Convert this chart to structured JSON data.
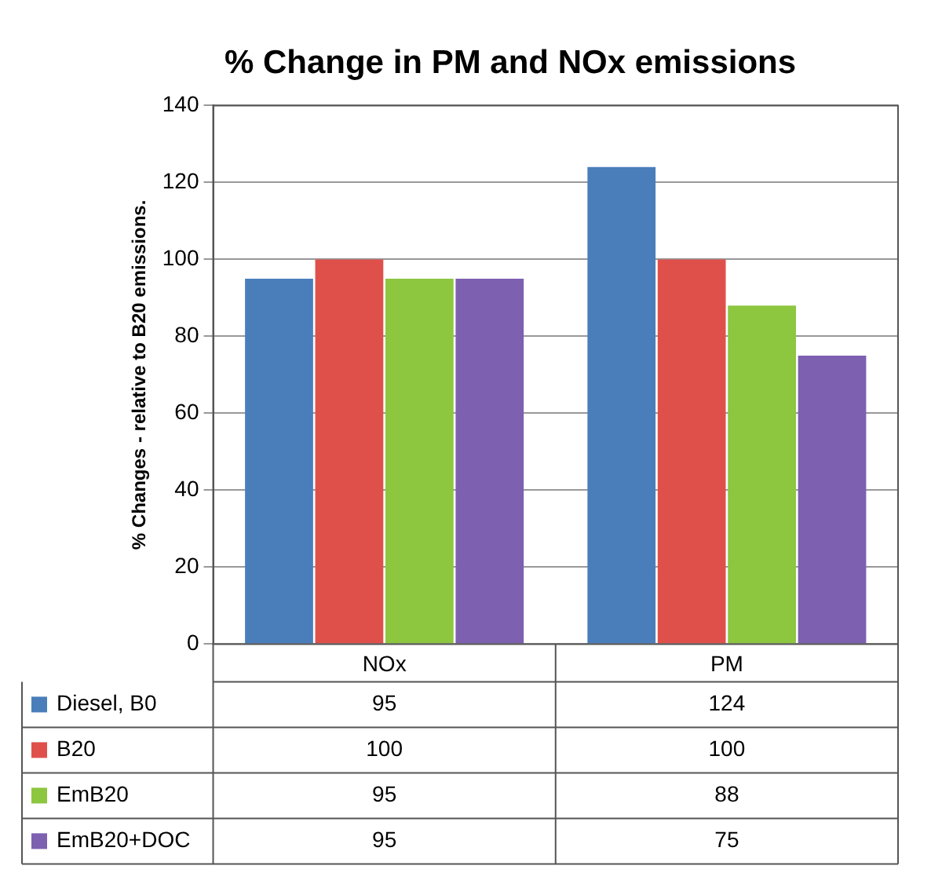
{
  "chart_data": {
    "type": "bar",
    "title": "% Change in PM and NOx emissions",
    "ylabel": "% Changes - relative to B20 emissions.",
    "categories": [
      "NOx",
      "PM"
    ],
    "series": [
      {
        "name": "Diesel, B0",
        "color": "#4a7ebb",
        "values": [
          95,
          124
        ]
      },
      {
        "name": "B20",
        "color": "#e0504b",
        "values": [
          100,
          100
        ]
      },
      {
        "name": "EmB20",
        "color": "#8dc63f",
        "values": [
          95,
          88
        ]
      },
      {
        "name": "EmB20+DOC",
        "color": "#7d60b0",
        "values": [
          95,
          75
        ]
      }
    ],
    "ylim": [
      0,
      140
    ],
    "yticks": [
      0,
      20,
      40,
      60,
      80,
      100,
      120,
      140
    ],
    "grid": "y",
    "legend": "bottom",
    "data_labels": true
  }
}
